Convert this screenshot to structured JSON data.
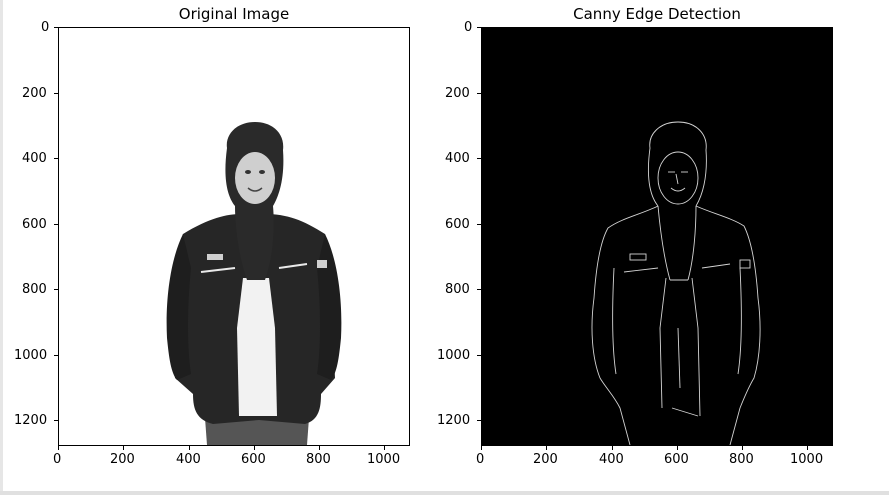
{
  "figure": {
    "panels": [
      {
        "title": "Original Image",
        "x_ticks": [
          "0",
          "200",
          "400",
          "600",
          "800",
          "1000"
        ],
        "y_ticks": [
          "0",
          "200",
          "400",
          "600",
          "800",
          "1000",
          "1200"
        ]
      },
      {
        "title": "Canny Edge Detection",
        "x_ticks": [
          "0",
          "200",
          "400",
          "600",
          "800",
          "1000"
        ],
        "y_ticks": [
          "0",
          "200",
          "400",
          "600",
          "800",
          "1000",
          "1200"
        ]
      }
    ]
  },
  "chart_data": [
    {
      "type": "image",
      "title": "Original Image",
      "xlim": [
        0,
        1080
      ],
      "ylim": [
        1280,
        0
      ],
      "x_ticks": [
        0,
        200,
        400,
        600,
        800,
        1000
      ],
      "y_ticks": [
        0,
        200,
        400,
        600,
        800,
        1000,
        1200
      ],
      "colors": {
        "background": "#ffffff",
        "subject": "#1e1e1e"
      }
    },
    {
      "type": "image",
      "title": "Canny Edge Detection",
      "xlim": [
        0,
        1080
      ],
      "ylim": [
        1280,
        0
      ],
      "x_ticks": [
        0,
        200,
        400,
        600,
        800,
        1000
      ],
      "y_ticks": [
        0,
        200,
        400,
        600,
        800,
        1000,
        1200
      ],
      "colors": {
        "background": "#000000",
        "edges": "#d0d0d0"
      }
    }
  ]
}
